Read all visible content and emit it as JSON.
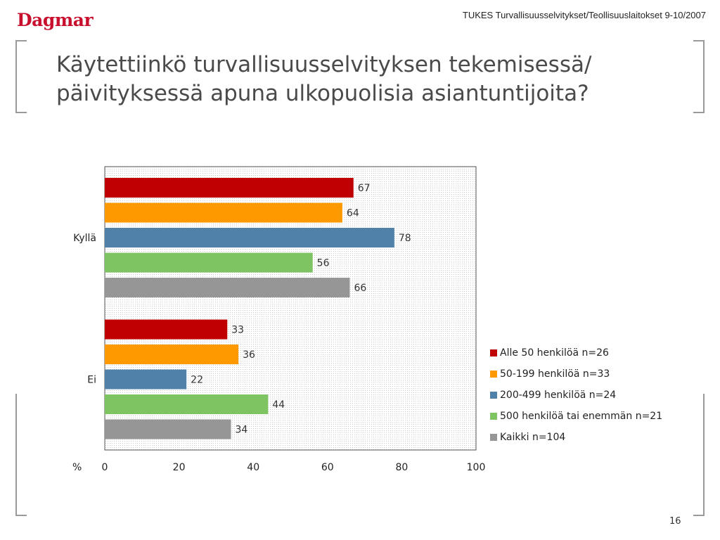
{
  "header": {
    "logo_text": "Dagmar",
    "reference": "TUKES Turvallisuusselvitykset/Teollisuuslaitokset 9-10/2007"
  },
  "slide": {
    "title_line1": "Käytettiinkö turvallisuusselvityksen tekemisessä/",
    "title_line2": "päivityksessä apuna ulkopuolisia asiantuntijoita?",
    "page_number": "16"
  },
  "colors": {
    "brand_red": "#c8102e",
    "series": [
      "#c00000",
      "#ff9900",
      "#4f81a9",
      "#7fc462",
      "#969696"
    ]
  },
  "chart_data": {
    "type": "bar",
    "orientation": "horizontal",
    "categories": [
      "Kyllä",
      "Ei"
    ],
    "series": [
      {
        "name": "Alle 50 henkilöä n=26",
        "values": [
          67,
          33
        ]
      },
      {
        "name": "50-199 henkilöä n=33",
        "values": [
          64,
          36
        ]
      },
      {
        "name": "200-499 henkilöä n=24",
        "values": [
          78,
          22
        ]
      },
      {
        "name": "500 henkilöä tai enemmän n=21",
        "values": [
          56,
          44
        ]
      },
      {
        "name": "Kaikki n=104",
        "values": [
          66,
          34
        ]
      }
    ],
    "xlim": [
      0,
      100
    ],
    "xticks": [
      "0",
      "20",
      "40",
      "60",
      "80",
      "100"
    ],
    "xlabel": "%",
    "data_labels": true,
    "legend_position": "right"
  }
}
